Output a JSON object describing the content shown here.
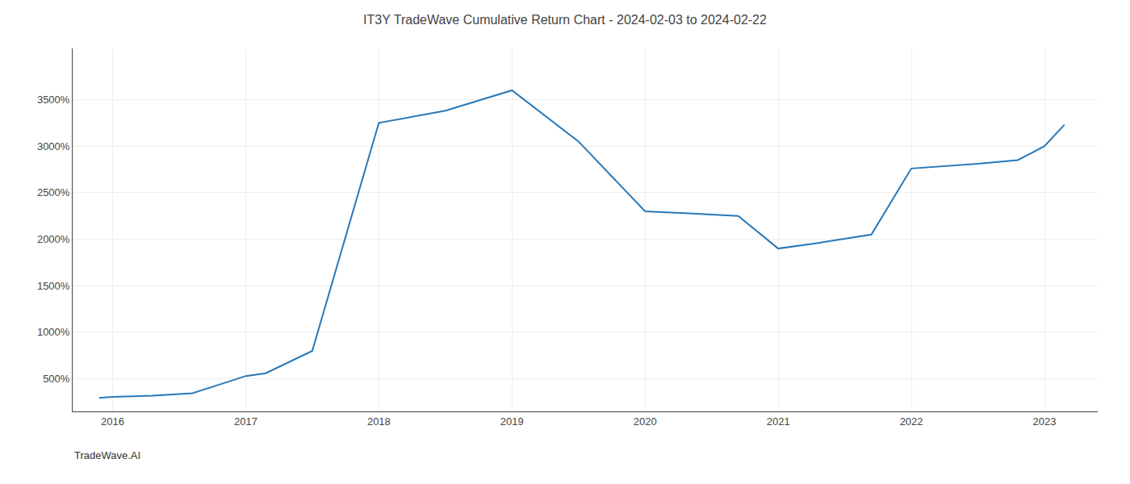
{
  "chart_data": {
    "type": "line",
    "title": "IT3Y TradeWave Cumulative Return Chart - 2024-02-03 to 2024-02-22",
    "annotations": [
      "TradeWave.AI"
    ],
    "x": [
      2015.9,
      2016.0,
      2016.3,
      2016.6,
      2017.0,
      2017.15,
      2017.5,
      2018.0,
      2018.5,
      2019.0,
      2019.5,
      2020.0,
      2020.3,
      2020.7,
      2021.0,
      2021.3,
      2021.7,
      2022.0,
      2022.5,
      2022.8,
      2023.0,
      2023.15
    ],
    "values": [
      295,
      305,
      320,
      345,
      530,
      560,
      800,
      3250,
      3380,
      3600,
      3050,
      2300,
      2280,
      2250,
      1900,
      1960,
      2050,
      2760,
      2810,
      2850,
      3000,
      3230
    ],
    "color": "#2878b8",
    "xlim": [
      2015.7,
      2023.4
    ],
    "ylim": [
      150,
      4050
    ],
    "xticks": [
      2016,
      2017,
      2018,
      2019,
      2020,
      2021,
      2022,
      2023
    ],
    "yticks": [
      {
        "value": 500,
        "label": "500%"
      },
      {
        "value": 1000,
        "label": "1000%"
      },
      {
        "value": 1500,
        "label": "1500%"
      },
      {
        "value": 2000,
        "label": "2000%"
      },
      {
        "value": 2500,
        "label": "2500%"
      },
      {
        "value": 3000,
        "label": "3000%"
      },
      {
        "value": 3500,
        "label": "3500%"
      }
    ],
    "grid": true
  }
}
